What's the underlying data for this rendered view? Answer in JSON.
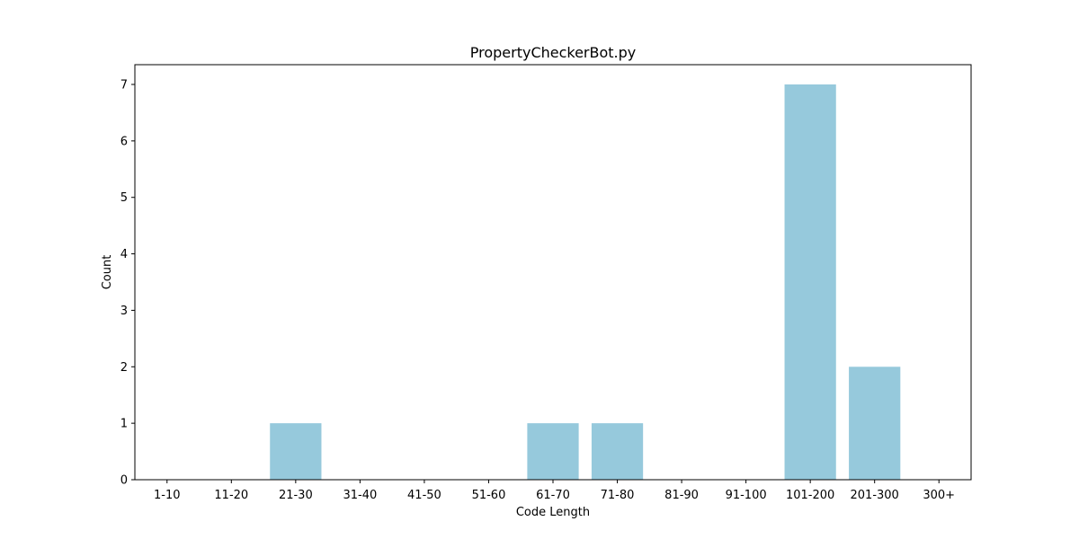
{
  "chart_data": {
    "type": "bar",
    "title": "PropertyCheckerBot.py",
    "xlabel": "Code Length",
    "ylabel": "Count",
    "categories": [
      "1-10",
      "11-20",
      "21-30",
      "31-40",
      "41-50",
      "51-60",
      "61-70",
      "71-80",
      "81-90",
      "91-100",
      "101-200",
      "201-300",
      "300+"
    ],
    "values": [
      0,
      0,
      1,
      0,
      0,
      0,
      1,
      1,
      0,
      0,
      7,
      2,
      0
    ],
    "yticks": [
      0,
      1,
      2,
      3,
      4,
      5,
      6,
      7
    ],
    "ylim": [
      0,
      7.35
    ],
    "grid": false,
    "bar_color": "#96c9dc"
  }
}
